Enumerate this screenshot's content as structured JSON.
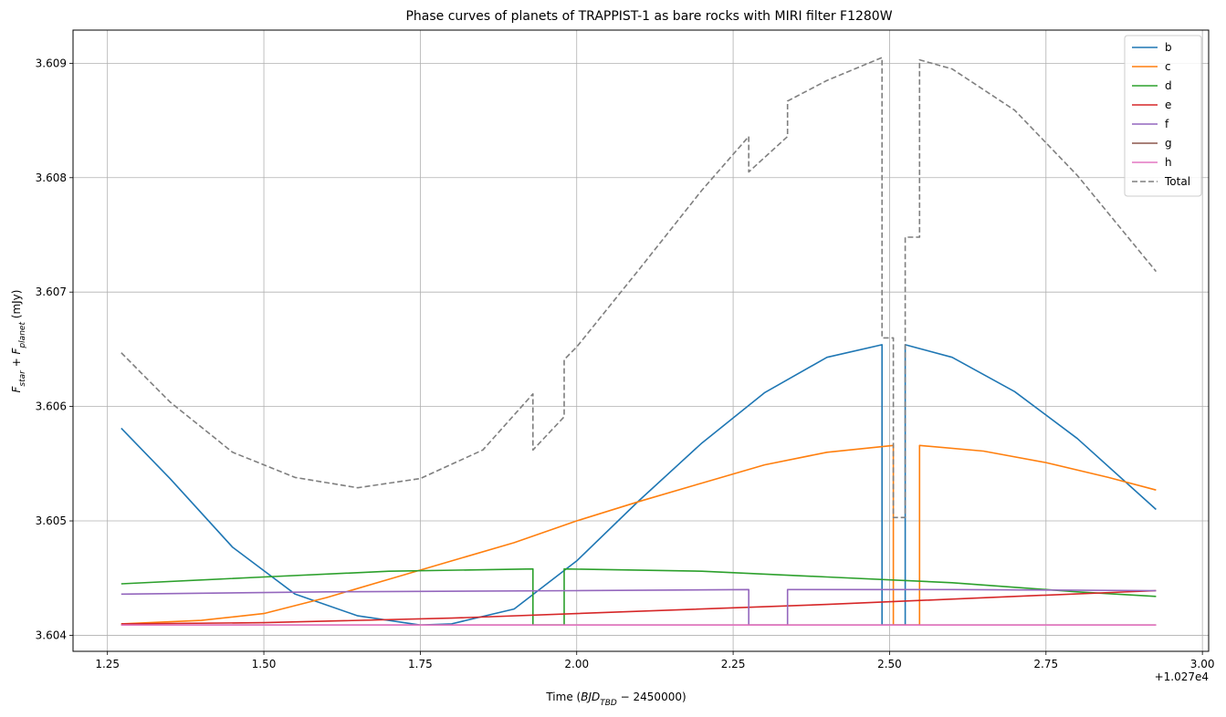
{
  "chart_data": {
    "type": "line",
    "title": "Phase curves of planets of TRAPPIST-1 as bare rocks with MIRI filter F1280W",
    "xlabel_prefix": "Time (",
    "xlabel_math": "BJD",
    "xlabel_sub": "TBD",
    "xlabel_rest": " − 2450000)",
    "x_offset_label": "+1.027e4",
    "ylabel_f1": "F",
    "ylabel_sub1": "star",
    "ylabel_plus": " + ",
    "ylabel_f2": "F",
    "ylabel_sub2": "planet",
    "ylabel_unit": " (mJy)",
    "xlim": [
      1.195,
      3.01
    ],
    "ylim": [
      3.60386,
      3.60929
    ],
    "grid": true,
    "legend_position": "top-right",
    "xticks": [
      {
        "value": 1.25,
        "label": "1.25"
      },
      {
        "value": 1.5,
        "label": "1.50"
      },
      {
        "value": 1.75,
        "label": "1.75"
      },
      {
        "value": 2.0,
        "label": "2.00"
      },
      {
        "value": 2.25,
        "label": "2.25"
      },
      {
        "value": 2.5,
        "label": "2.50"
      },
      {
        "value": 2.75,
        "label": "2.75"
      },
      {
        "value": 3.0,
        "label": "3.00"
      }
    ],
    "yticks": [
      {
        "value": 3.604,
        "label": "3.604"
      },
      {
        "value": 3.605,
        "label": "3.605"
      },
      {
        "value": 3.606,
        "label": "3.606"
      },
      {
        "value": 3.607,
        "label": "3.607"
      },
      {
        "value": 3.608,
        "label": "3.608"
      },
      {
        "value": 3.609,
        "label": "3.609"
      }
    ],
    "series": [
      {
        "name": "b",
        "color": "#1f77b4",
        "dash": false,
        "points": [
          [
            1.272,
            3.60581
          ],
          [
            1.35,
            3.60537
          ],
          [
            1.45,
            3.60477
          ],
          [
            1.55,
            3.60436
          ],
          [
            1.65,
            3.60417
          ],
          [
            1.75,
            3.60409
          ],
          [
            1.8,
            3.6041
          ],
          [
            1.9,
            3.60423
          ],
          [
            2.0,
            3.60465
          ],
          [
            2.1,
            3.60518
          ],
          [
            2.2,
            3.60568
          ],
          [
            2.3,
            3.60612
          ],
          [
            2.4,
            3.60643
          ],
          [
            2.488,
            3.60654
          ],
          [
            2.488,
            3.60409
          ],
          [
            2.525,
            3.60409
          ],
          [
            2.525,
            3.60654
          ],
          [
            2.6,
            3.60643
          ],
          [
            2.7,
            3.60613
          ],
          [
            2.8,
            3.60572
          ],
          [
            2.926,
            3.6051
          ]
        ]
      },
      {
        "name": "c",
        "color": "#ff7f0e",
        "dash": false,
        "points": [
          [
            1.272,
            3.6041
          ],
          [
            1.4,
            3.60413
          ],
          [
            1.5,
            3.60419
          ],
          [
            1.6,
            3.60433
          ],
          [
            1.7,
            3.60449
          ],
          [
            1.8,
            3.60465
          ],
          [
            1.9,
            3.60481
          ],
          [
            2.0,
            3.605
          ],
          [
            2.1,
            3.60517
          ],
          [
            2.2,
            3.60533
          ],
          [
            2.3,
            3.60549
          ],
          [
            2.4,
            3.6056
          ],
          [
            2.506,
            3.60566
          ],
          [
            2.506,
            3.60409
          ],
          [
            2.548,
            3.60409
          ],
          [
            2.548,
            3.60566
          ],
          [
            2.65,
            3.60561
          ],
          [
            2.75,
            3.60551
          ],
          [
            2.85,
            3.60538
          ],
          [
            2.926,
            3.60527
          ]
        ]
      },
      {
        "name": "d",
        "color": "#2ca02c",
        "dash": false,
        "points": [
          [
            1.272,
            3.60445
          ],
          [
            1.5,
            3.60451
          ],
          [
            1.7,
            3.60456
          ],
          [
            1.93,
            3.60458
          ],
          [
            1.93,
            3.60409
          ],
          [
            1.98,
            3.60409
          ],
          [
            1.98,
            3.60458
          ],
          [
            2.2,
            3.60456
          ],
          [
            2.4,
            3.60451
          ],
          [
            2.6,
            3.60446
          ],
          [
            2.8,
            3.60438
          ],
          [
            2.926,
            3.60434
          ]
        ]
      },
      {
        "name": "e",
        "color": "#d62728",
        "dash": false,
        "points": [
          [
            1.272,
            3.6041
          ],
          [
            1.5,
            3.60411
          ],
          [
            1.8,
            3.60415
          ],
          [
            2.1,
            3.60421
          ],
          [
            2.4,
            3.60427
          ],
          [
            2.7,
            3.60434
          ],
          [
            2.926,
            3.60439
          ]
        ]
      },
      {
        "name": "f",
        "color": "#9467bd",
        "dash": false,
        "points": [
          [
            1.272,
            3.60436
          ],
          [
            1.6,
            3.60438
          ],
          [
            2.0,
            3.60439
          ],
          [
            2.275,
            3.6044
          ],
          [
            2.275,
            3.60409
          ],
          [
            2.337,
            3.60409
          ],
          [
            2.337,
            3.6044
          ],
          [
            2.6,
            3.6044
          ],
          [
            2.926,
            3.60439
          ]
        ]
      },
      {
        "name": "g",
        "color": "#8c564b",
        "dash": false,
        "points": [
          [
            1.272,
            3.60409
          ],
          [
            2.926,
            3.60409
          ]
        ]
      },
      {
        "name": "h",
        "color": "#e377c2",
        "dash": false,
        "points": [
          [
            1.272,
            3.60409
          ],
          [
            2.926,
            3.60409
          ]
        ]
      },
      {
        "name": "Total",
        "color": "#7f7f7f",
        "dash": true,
        "points": [
          [
            1.272,
            3.60647
          ],
          [
            1.35,
            3.60604
          ],
          [
            1.45,
            3.6056
          ],
          [
            1.55,
            3.60538
          ],
          [
            1.65,
            3.60529
          ],
          [
            1.75,
            3.60537
          ],
          [
            1.85,
            3.60562
          ],
          [
            1.93,
            3.60611
          ],
          [
            1.93,
            3.60562
          ],
          [
            1.98,
            3.60591
          ],
          [
            1.98,
            3.60641
          ],
          [
            2.0,
            3.60652
          ],
          [
            2.1,
            3.6072
          ],
          [
            2.2,
            3.60789
          ],
          [
            2.275,
            3.60836
          ],
          [
            2.275,
            3.60805
          ],
          [
            2.337,
            3.60836
          ],
          [
            2.337,
            3.60867
          ],
          [
            2.4,
            3.60885
          ],
          [
            2.488,
            3.60905
          ],
          [
            2.488,
            3.6066
          ],
          [
            2.506,
            3.6066
          ],
          [
            2.506,
            3.60503
          ],
          [
            2.525,
            3.60503
          ],
          [
            2.525,
            3.60748
          ],
          [
            2.548,
            3.60748
          ],
          [
            2.548,
            3.60903
          ],
          [
            2.6,
            3.60895
          ],
          [
            2.7,
            3.60859
          ],
          [
            2.8,
            3.60802
          ],
          [
            2.926,
            3.60718
          ]
        ]
      }
    ]
  }
}
